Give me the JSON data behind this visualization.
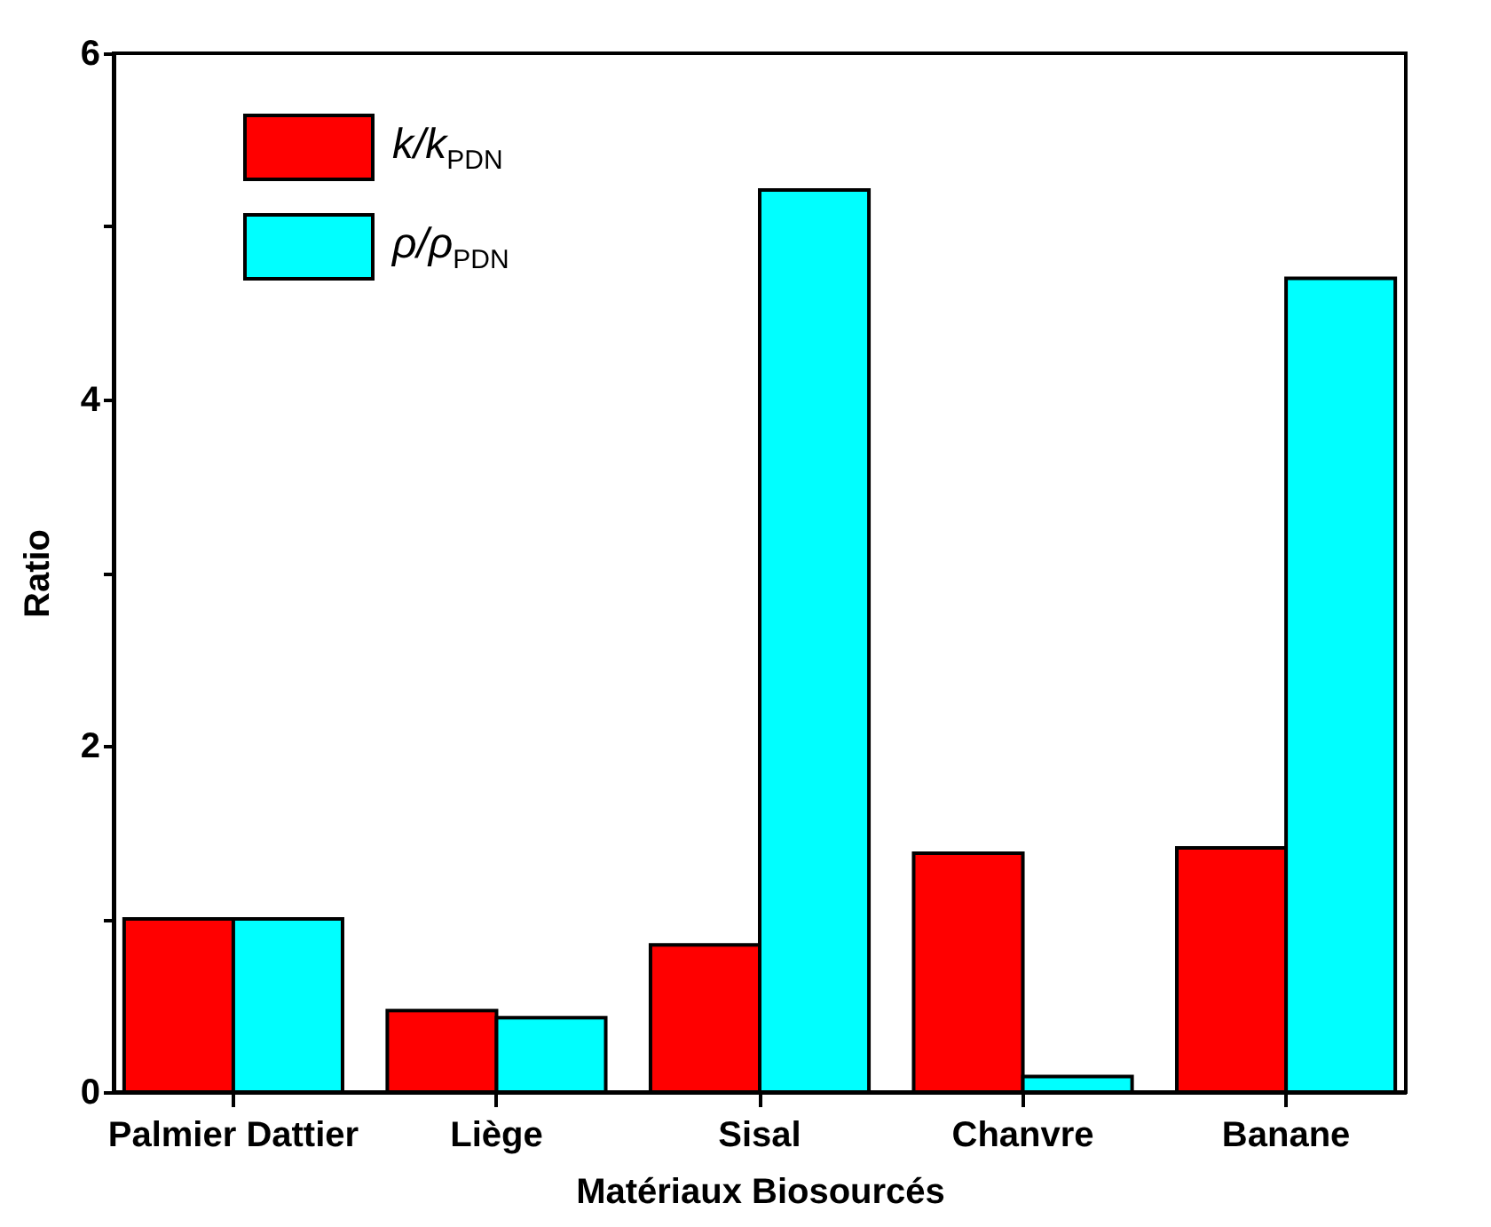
{
  "chart_data": {
    "type": "bar",
    "xlabel": "Matériaux Biosourcés",
    "ylabel": "Ratio",
    "categories": [
      "Palmier Dattier",
      "Liège",
      "Sisal",
      "Chanvre",
      "Banane"
    ],
    "series": [
      {
        "name": "k/k$_{PDN}$",
        "color": "#ff0000",
        "values": [
          1.0,
          0.47,
          0.85,
          1.38,
          1.41
        ]
      },
      {
        "name": "ρ/ρ$_{PDN}$",
        "color": "#00ffff",
        "values": [
          1.0,
          0.43,
          5.21,
          0.09,
          4.7
        ]
      }
    ],
    "ylim": [
      0,
      6
    ],
    "yticks": [
      0,
      {
        "value": 1,
        "label": null
      },
      2,
      {
        "value": 3,
        "label": null
      },
      4,
      {
        "value": 5,
        "label": null
      },
      6
    ],
    "grid": false,
    "legend": "top left"
  }
}
